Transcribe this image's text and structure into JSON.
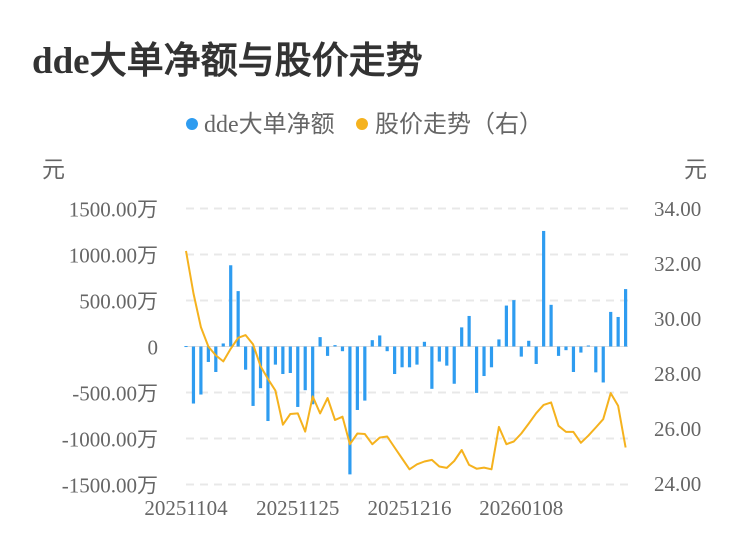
{
  "chart_data": {
    "type": "bar+line",
    "title": "dde大单净额与股价走势",
    "legend": {
      "position": "top-center",
      "entries": [
        "dde大单净额",
        "股价走势（右）"
      ]
    },
    "colors": {
      "bars": "#2e9cf0",
      "line": "#f5b21e",
      "grid": "#e8e8e8",
      "text": "#666666",
      "title": "#333333"
    },
    "left_axis": {
      "unit_label": "元",
      "range": [
        -1500,
        1500
      ],
      "ticks": [
        "1500.00万",
        "1000.00万",
        "500.00万",
        "0",
        "-500.00万",
        "-1000.00万",
        "-1500.00万"
      ],
      "tick_values": [
        1500,
        1000,
        500,
        0,
        -500,
        -1000,
        -1500
      ]
    },
    "right_axis": {
      "unit_label": "元",
      "range": [
        24,
        34
      ],
      "ticks": [
        "34.00",
        "32.00",
        "30.00",
        "28.00",
        "26.00",
        "24.00"
      ],
      "tick_values": [
        34,
        32,
        30,
        28,
        26,
        24
      ]
    },
    "x_tick_labels": [
      {
        "index": 0,
        "label": "20251104"
      },
      {
        "index": 15,
        "label": "20251125"
      },
      {
        "index": 30,
        "label": "20251216"
      },
      {
        "index": 45,
        "label": "20260108"
      }
    ],
    "series": [
      {
        "name": "dde大单净额",
        "unit": "万",
        "type": "bar",
        "values": [
          5,
          -620,
          -522,
          -168,
          -277,
          33,
          883,
          602,
          -252,
          -646,
          -453,
          -810,
          -197,
          -299,
          -288,
          -657,
          -475,
          -628,
          102,
          -102,
          15,
          -51,
          -1390,
          -690,
          -588,
          69,
          120,
          -51,
          -299,
          -226,
          -226,
          -197,
          51,
          -460,
          -164,
          -208,
          -405,
          208,
          332,
          -504,
          -321,
          -226,
          77,
          445,
          504,
          -110,
          62,
          -190,
          1256,
          453,
          -102,
          -40,
          -277,
          -66,
          11,
          -281,
          -391,
          376,
          321,
          624
        ]
      },
      {
        "name": "股价走势（右）",
        "type": "line",
        "values": [
          32.44,
          30.89,
          29.67,
          28.96,
          28.64,
          28.42,
          28.88,
          29.28,
          29.38,
          29.04,
          28.25,
          27.78,
          27.36,
          26.12,
          26.51,
          26.53,
          25.87,
          27.15,
          26.53,
          27.09,
          26.29,
          26.41,
          25.41,
          25.8,
          25.78,
          25.41,
          25.65,
          25.69,
          25.29,
          24.89,
          24.5,
          24.68,
          24.78,
          24.84,
          24.6,
          24.55,
          24.8,
          25.2,
          24.66,
          24.52,
          24.56,
          24.5,
          26.04,
          25.41,
          25.51,
          25.8,
          26.16,
          26.54,
          26.84,
          26.93,
          26.08,
          25.86,
          25.86,
          25.46,
          25.72,
          26.02,
          26.32,
          27.27,
          26.81,
          25.29
        ]
      }
    ]
  }
}
